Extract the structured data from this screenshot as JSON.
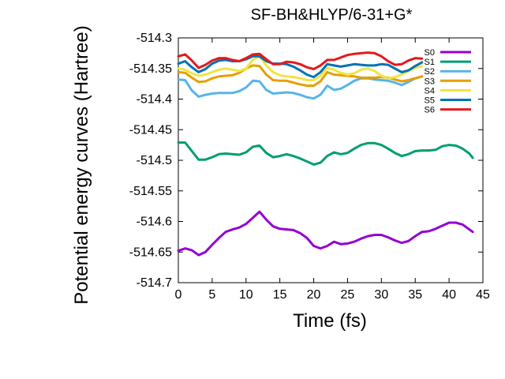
{
  "chart_data": {
    "type": "line",
    "title": "SF-BH&HLYP/6-31+G*",
    "xlabel": "Time (fs)",
    "ylabel": "Potential energy curves (Hartree)",
    "xlim": [
      0,
      45
    ],
    "ylim": [
      -514.7,
      -514.3
    ],
    "xticks": [
      0,
      5,
      10,
      15,
      20,
      25,
      30,
      35,
      40,
      45
    ],
    "xtick_labels": [
      "0",
      "5",
      "10",
      "15",
      "20",
      "25",
      "30",
      "35",
      "40",
      "45"
    ],
    "yticks": [
      -514.7,
      -514.65,
      -514.6,
      -514.55,
      -514.5,
      -514.45,
      -514.4,
      -514.35,
      -514.3
    ],
    "ytick_labels": [
      "-514.7",
      "-514.65",
      "-514.6",
      "-514.55",
      "-514.5",
      "-514.45",
      "-514.4",
      "-514.35",
      "-514.3"
    ],
    "grid": false,
    "legend_position": "top-right",
    "series": [
      {
        "name": "S0",
        "color": "#9400d3",
        "x": [
          0,
          1,
          2,
          3,
          4,
          5,
          6,
          7,
          8,
          9,
          10,
          11,
          12,
          13,
          14,
          15,
          16,
          17,
          18,
          19,
          20,
          21,
          22,
          23,
          24,
          25,
          26,
          27,
          28,
          29,
          30,
          31,
          32,
          33,
          34,
          35,
          36,
          37,
          38,
          39,
          40,
          41,
          42,
          43,
          43.5
        ],
        "values": [
          -514.648,
          -514.644,
          -514.647,
          -514.655,
          -514.65,
          -514.638,
          -514.627,
          -514.617,
          -514.613,
          -514.61,
          -514.604,
          -514.594,
          -514.584,
          -514.597,
          -514.608,
          -514.612,
          -514.613,
          -514.614,
          -514.619,
          -514.627,
          -514.64,
          -514.644,
          -514.64,
          -514.633,
          -514.637,
          -514.636,
          -514.633,
          -514.628,
          -514.624,
          -514.622,
          -514.622,
          -514.626,
          -514.631,
          -514.635,
          -514.632,
          -514.624,
          -514.617,
          -514.616,
          -514.612,
          -514.607,
          -514.602,
          -514.602,
          -514.605,
          -514.613,
          -514.617
        ]
      },
      {
        "name": "S1",
        "color": "#009e73",
        "x": [
          0,
          1,
          2,
          3,
          4,
          5,
          6,
          7,
          8,
          9,
          10,
          11,
          12,
          13,
          14,
          15,
          16,
          17,
          18,
          19,
          20,
          21,
          22,
          23,
          24,
          25,
          26,
          27,
          28,
          29,
          30,
          31,
          32,
          33,
          34,
          35,
          36,
          37,
          38,
          39,
          40,
          41,
          42,
          43,
          43.5
        ],
        "values": [
          -514.471,
          -514.471,
          -514.485,
          -514.499,
          -514.499,
          -514.495,
          -514.49,
          -514.489,
          -514.49,
          -514.491,
          -514.487,
          -514.478,
          -514.476,
          -514.488,
          -514.495,
          -514.493,
          -514.49,
          -514.493,
          -514.497,
          -514.502,
          -514.507,
          -514.504,
          -514.493,
          -514.487,
          -514.49,
          -514.488,
          -514.481,
          -514.475,
          -514.472,
          -514.472,
          -514.475,
          -514.481,
          -514.488,
          -514.493,
          -514.49,
          -514.485,
          -514.484,
          -514.484,
          -514.483,
          -514.477,
          -514.475,
          -514.476,
          -514.481,
          -514.489,
          -514.496
        ]
      },
      {
        "name": "S2",
        "color": "#56b4e9",
        "x": [
          0,
          1,
          2,
          3,
          4,
          5,
          6,
          7,
          8,
          9,
          10,
          11,
          12,
          13,
          14,
          15,
          16,
          17,
          18,
          19,
          20,
          21,
          22,
          23,
          24,
          25,
          26,
          27,
          28,
          29,
          30,
          31,
          32,
          33,
          34,
          35,
          36
        ],
        "values": [
          -514.368,
          -514.369,
          -514.386,
          -514.396,
          -514.393,
          -514.391,
          -514.39,
          -514.39,
          -514.39,
          -514.387,
          -514.381,
          -514.37,
          -514.371,
          -514.385,
          -514.391,
          -514.39,
          -514.389,
          -514.39,
          -514.393,
          -514.397,
          -514.399,
          -514.393,
          -514.378,
          -514.385,
          -514.383,
          -514.377,
          -514.37,
          -514.366,
          -514.366,
          -514.368,
          -514.369,
          -514.37,
          -514.373,
          -514.377,
          -514.372,
          -514.366,
          -514.363
        ]
      },
      {
        "name": "S3",
        "color": "#e69f00",
        "x": [
          0,
          1,
          2,
          3,
          4,
          5,
          6,
          7,
          8,
          9,
          10,
          11,
          12,
          13,
          14,
          15,
          16,
          17,
          18,
          19,
          20,
          21,
          22,
          23,
          24,
          25,
          26,
          27,
          28,
          29,
          30,
          31,
          32,
          33,
          34,
          35,
          36
        ],
        "values": [
          -514.356,
          -514.357,
          -514.365,
          -514.372,
          -514.371,
          -514.366,
          -514.363,
          -514.362,
          -514.361,
          -514.357,
          -514.35,
          -514.345,
          -514.346,
          -514.36,
          -514.369,
          -514.37,
          -514.37,
          -514.373,
          -514.376,
          -514.378,
          -514.378,
          -514.371,
          -514.356,
          -514.36,
          -514.361,
          -514.362,
          -514.363,
          -514.365,
          -514.365,
          -514.365,
          -514.364,
          -514.365,
          -514.368,
          -514.371,
          -514.369,
          -514.366,
          -514.363
        ]
      },
      {
        "name": "S4",
        "color": "#f0e442",
        "x": [
          0,
          1,
          2,
          3,
          4,
          5,
          6,
          7,
          8,
          9,
          10,
          11,
          12,
          13,
          14,
          15,
          16,
          17,
          18,
          19,
          20,
          21,
          22,
          23,
          24,
          25,
          26,
          27,
          28,
          29,
          30,
          31,
          32,
          33,
          34,
          35,
          36
        ],
        "values": [
          -514.35,
          -514.352,
          -514.358,
          -514.362,
          -514.36,
          -514.356,
          -514.352,
          -514.35,
          -514.352,
          -514.354,
          -514.35,
          -514.336,
          -514.33,
          -514.345,
          -514.356,
          -514.361,
          -514.363,
          -514.364,
          -514.366,
          -514.369,
          -514.369,
          -514.362,
          -514.349,
          -514.352,
          -514.357,
          -514.36,
          -514.358,
          -514.352,
          -514.35,
          -514.354,
          -514.362,
          -514.366,
          -514.364,
          -514.36,
          -514.354,
          -514.349,
          -514.346
        ]
      },
      {
        "name": "S5",
        "color": "#0072b2",
        "x": [
          0,
          1,
          2,
          3,
          4,
          5,
          6,
          7,
          8,
          9,
          10,
          11,
          12,
          13,
          14,
          15,
          16,
          17,
          18,
          19,
          20,
          21,
          22,
          23,
          24,
          25,
          26,
          27,
          28,
          29,
          30,
          31,
          32,
          33,
          34,
          35,
          36
        ],
        "values": [
          -514.342,
          -514.338,
          -514.348,
          -514.356,
          -514.351,
          -514.342,
          -514.337,
          -514.336,
          -514.338,
          -514.338,
          -514.335,
          -514.33,
          -514.33,
          -514.338,
          -514.342,
          -514.342,
          -514.343,
          -514.347,
          -514.353,
          -514.36,
          -514.364,
          -514.356,
          -514.343,
          -514.345,
          -514.347,
          -514.345,
          -514.343,
          -514.344,
          -514.345,
          -514.345,
          -514.343,
          -514.344,
          -514.35,
          -514.356,
          -514.353,
          -514.346,
          -514.34
        ]
      },
      {
        "name": "S6",
        "color": "#e41a1c",
        "x": [
          0,
          1,
          2,
          3,
          4,
          5,
          6,
          7,
          8,
          9,
          10,
          11,
          12,
          13,
          14,
          15,
          16,
          17,
          18,
          19,
          20,
          21,
          22,
          23,
          24,
          25,
          26,
          27,
          28,
          29,
          30,
          31,
          32,
          33,
          34,
          35,
          36
        ],
        "values": [
          -514.33,
          -514.327,
          -514.337,
          -514.349,
          -514.344,
          -514.337,
          -514.333,
          -514.333,
          -514.336,
          -514.338,
          -514.333,
          -514.327,
          -514.326,
          -514.335,
          -514.343,
          -514.343,
          -514.339,
          -514.34,
          -514.343,
          -514.348,
          -514.351,
          -514.345,
          -514.336,
          -514.336,
          -514.332,
          -514.328,
          -514.326,
          -514.325,
          -514.324,
          -514.325,
          -514.33,
          -514.338,
          -514.344,
          -514.343,
          -514.337,
          -514.333,
          -514.334
        ]
      }
    ]
  }
}
